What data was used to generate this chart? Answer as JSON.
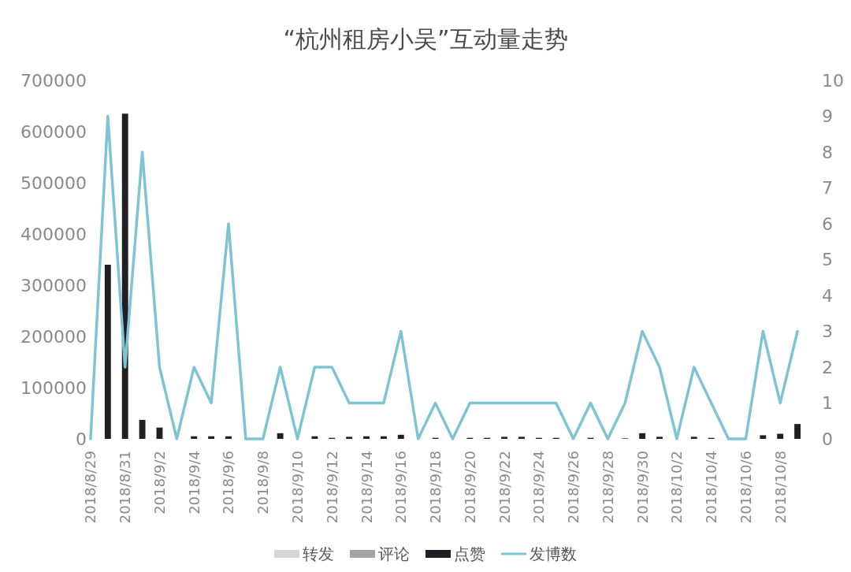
{
  "chart_data": {
    "type": "bar",
    "title": "“杭州租房小吴”互动量走势",
    "categories": [
      "2018/8/29",
      null,
      "2018/8/31",
      null,
      "2018/9/2",
      null,
      "2018/9/4",
      null,
      "2018/9/6",
      null,
      "2018/9/8",
      null,
      "2018/9/10",
      null,
      "2018/9/12",
      null,
      "2018/9/14",
      null,
      "2018/9/16",
      null,
      "2018/9/18",
      null,
      "2018/9/20",
      null,
      "2018/9/22",
      null,
      "2018/9/24",
      null,
      "2018/9/26",
      null,
      "2018/9/28",
      null,
      "2018/9/30",
      null,
      "2018/10/2",
      null,
      "2018/10/4",
      null,
      "2018/10/6",
      null,
      "2018/10/8",
      null
    ],
    "series": [
      {
        "name": "转发",
        "color": "#d6d6d6",
        "values": [
          null,
          null,
          null,
          null,
          null,
          null,
          null,
          null,
          null,
          null,
          null,
          null,
          null,
          null,
          null,
          null,
          null,
          null,
          null,
          null,
          null,
          null,
          null,
          null,
          null,
          null,
          null,
          null,
          null,
          null,
          null,
          null,
          null,
          null,
          null,
          null,
          null,
          null,
          null,
          null,
          null,
          null
        ]
      },
      {
        "name": "评论",
        "color": "#a3a3a3",
        "values": [
          null,
          null,
          null,
          null,
          null,
          null,
          null,
          null,
          null,
          null,
          null,
          null,
          null,
          null,
          null,
          null,
          null,
          null,
          null,
          null,
          null,
          null,
          null,
          null,
          null,
          null,
          null,
          null,
          null,
          null,
          null,
          null,
          null,
          null,
          null,
          null,
          null,
          null,
          null,
          null,
          null,
          null
        ]
      },
      {
        "name": "点赞",
        "color": "#1f1f24",
        "values": [
          0,
          340000,
          635000,
          37000,
          22000,
          0,
          5000,
          5000,
          5000,
          0,
          0,
          11000,
          0,
          5000,
          2000,
          4000,
          5000,
          5000,
          8000,
          0,
          2000,
          0,
          2000,
          2000,
          4000,
          4000,
          2000,
          2000,
          0,
          2000,
          0,
          1000,
          11000,
          4000,
          0,
          4000,
          2000,
          0,
          0,
          7000,
          10000,
          29000
        ]
      },
      {
        "name": "发博数",
        "type": "line",
        "axis": "y2",
        "color": "#7fc4d3",
        "values": [
          0,
          9,
          2,
          8,
          2,
          0,
          2,
          1,
          6,
          0,
          0,
          2,
          0,
          2,
          2,
          1,
          1,
          1,
          3,
          0,
          1,
          0,
          1,
          1,
          1,
          1,
          1,
          1,
          0,
          1,
          0,
          1,
          3,
          2,
          0,
          2,
          1,
          0,
          0,
          3,
          1,
          3
        ]
      }
    ],
    "ylim": [
      0,
      700000
    ],
    "yticks": [
      0,
      100000,
      200000,
      300000,
      400000,
      500000,
      600000,
      700000
    ],
    "y2lim": [
      0,
      10
    ],
    "y2ticks": [
      0,
      1,
      2,
      3,
      4,
      5,
      6,
      7,
      8,
      9,
      10
    ],
    "legend": "bottom"
  }
}
